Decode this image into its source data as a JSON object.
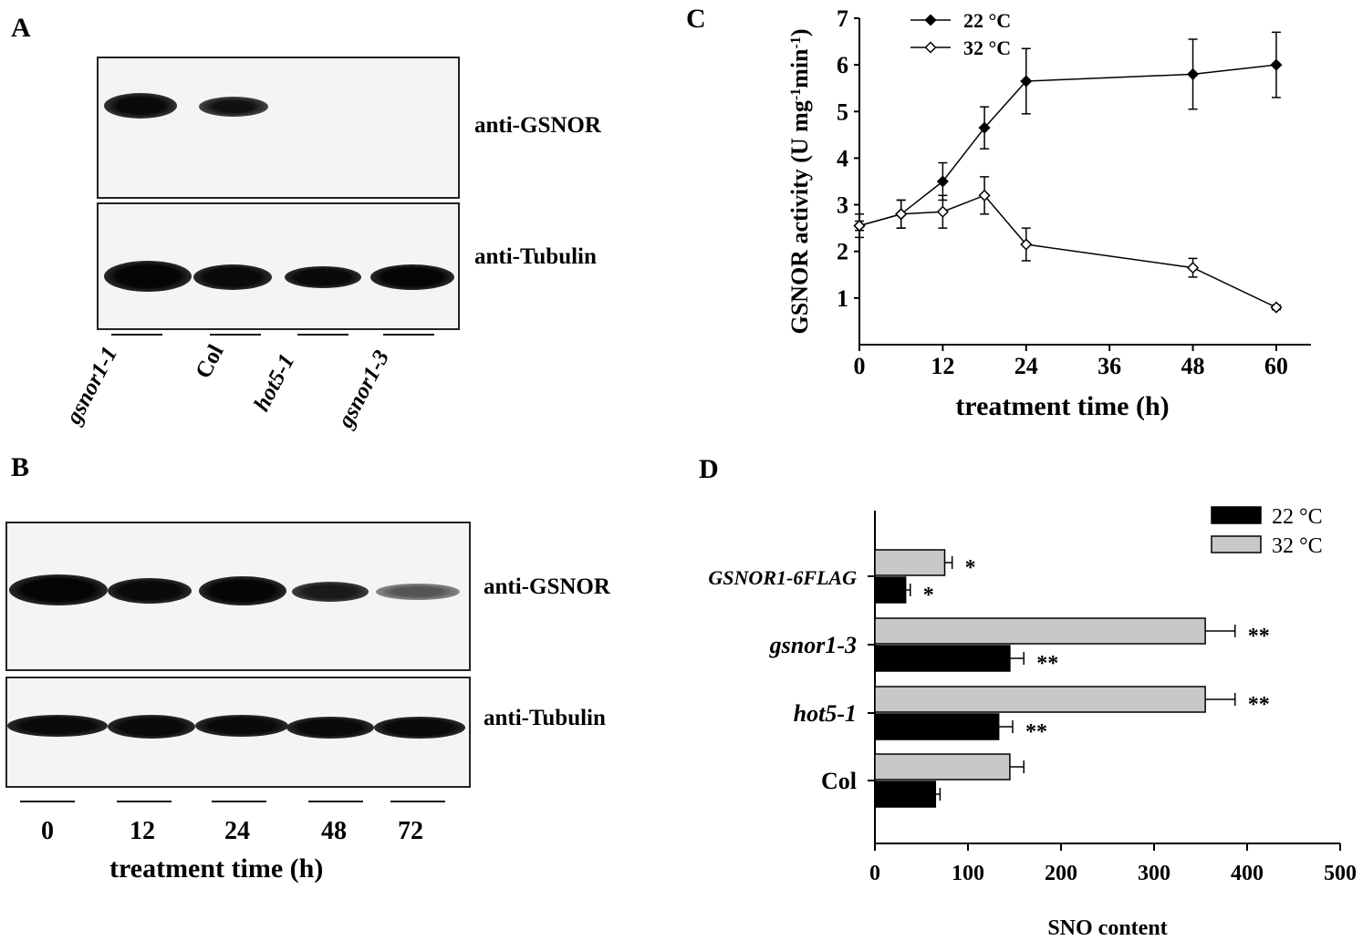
{
  "panel_a": {
    "letter": "A",
    "blot_labels": [
      "anti-GSNOR",
      "anti-Tubulin"
    ],
    "lanes": [
      "gsnor1-1",
      "Col",
      "hot5-1",
      "gsnor1-3"
    ]
  },
  "panel_b": {
    "letter": "B",
    "blot_labels": [
      "anti-GSNOR",
      "anti-Tubulin"
    ],
    "lanes": [
      "0",
      "12",
      "24",
      "48",
      "72"
    ],
    "xlabel": "treatment time (h)"
  },
  "panel_c": {
    "letter": "C"
  },
  "panel_d": {
    "letter": "D"
  },
  "chart_data": [
    {
      "type": "line",
      "panel": "C",
      "xlabel": "treatment time (h)",
      "ylabel": "GSNOR activity (U mg-1 min-1)",
      "ylabel_parts": [
        "GSNOR activity (U mg",
        "-1",
        "min",
        "-1",
        ")"
      ],
      "xticks": [
        0,
        12,
        24,
        36,
        48,
        60
      ],
      "yticks": [
        1,
        2,
        3,
        4,
        5,
        6,
        7
      ],
      "xlim": [
        0,
        65
      ],
      "ylim": [
        0,
        7
      ],
      "legend_position": "top-left",
      "series": [
        {
          "name": "22 °C",
          "marker": "filled-diamond",
          "x": [
            0,
            6,
            12,
            18,
            24,
            48,
            60
          ],
          "y": [
            2.55,
            2.8,
            3.5,
            4.65,
            5.65,
            5.8,
            6.0
          ],
          "err": [
            0.25,
            0.3,
            0.4,
            0.45,
            0.7,
            0.75,
            0.7
          ]
        },
        {
          "name": "32 °C",
          "marker": "open-diamond",
          "x": [
            0,
            6,
            12,
            18,
            24,
            48,
            60
          ],
          "y": [
            2.55,
            2.8,
            2.85,
            3.2,
            2.15,
            1.65,
            0.8
          ],
          "err": [
            0.1,
            0.3,
            0.35,
            0.4,
            0.35,
            0.2,
            0.05
          ]
        }
      ]
    },
    {
      "type": "bar",
      "orientation": "horizontal",
      "panel": "D",
      "xlabel": "SNO content",
      "xticks": [
        0,
        100,
        200,
        300,
        400,
        500
      ],
      "xlim": [
        0,
        500
      ],
      "legend_position": "top-right",
      "categories": [
        "GSNOR1-6FLAG",
        "gsnor1-3",
        "hot5-1",
        "Col"
      ],
      "series": [
        {
          "name": "32 °C",
          "color": "#c8c8c8",
          "values": [
            75,
            355,
            355,
            145
          ],
          "err": [
            8,
            32,
            32,
            15
          ],
          "significance": [
            "*",
            "**",
            "**",
            ""
          ]
        },
        {
          "name": "22 °C",
          "color": "#000000",
          "values": [
            33,
            145,
            133,
            65
          ],
          "err": [
            5,
            15,
            15,
            5
          ],
          "significance": [
            "*",
            "**",
            "**",
            ""
          ]
        }
      ]
    }
  ]
}
